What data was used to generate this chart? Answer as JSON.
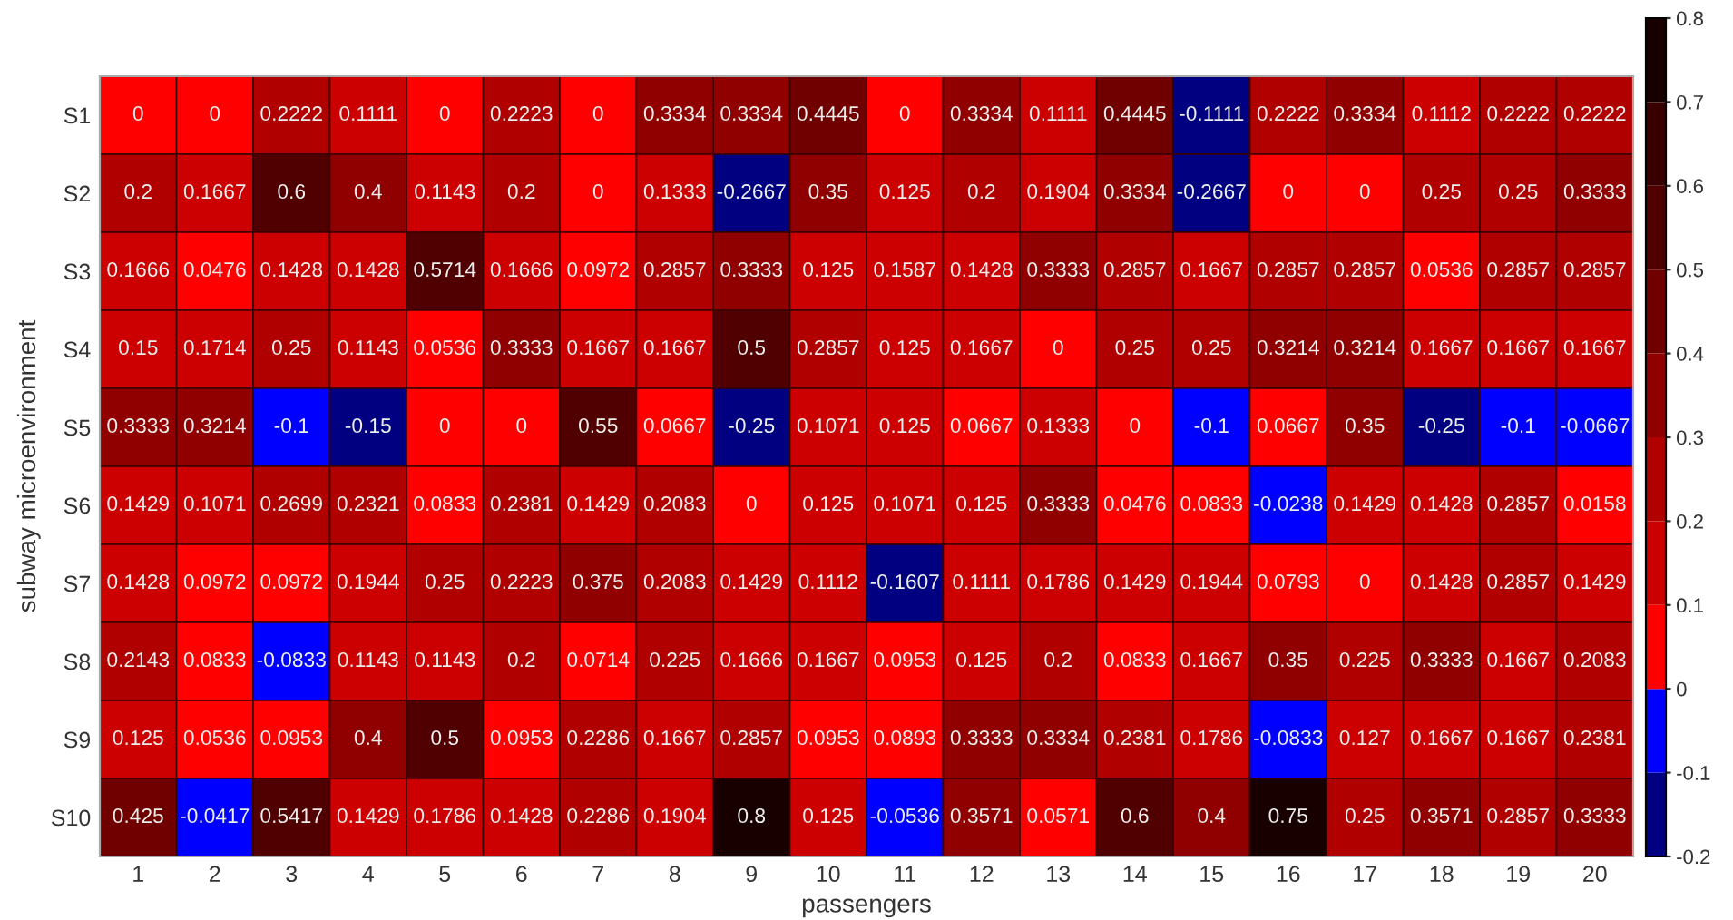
{
  "chart_data": {
    "type": "heatmap",
    "xlabel": "passengers",
    "ylabel": "subway microenvironment",
    "categories": [
      "1",
      "2",
      "3",
      "4",
      "5",
      "6",
      "7",
      "8",
      "9",
      "10",
      "11",
      "12",
      "13",
      "14",
      "15",
      "16",
      "17",
      "18",
      "19",
      "20"
    ],
    "y_categories": [
      "S1",
      "S2",
      "S3",
      "S4",
      "S5",
      "S6",
      "S7",
      "S8",
      "S9",
      "S10"
    ],
    "cells": [
      [
        0,
        0,
        0.2222,
        0.1111,
        0,
        0.2223,
        0,
        0.3334,
        0.3334,
        0.4445,
        0,
        0.3334,
        0.1111,
        0.4445,
        -0.1111,
        0.2222,
        0.3334,
        0.1112,
        0.2222,
        0.2222
      ],
      [
        0.2,
        0.1667,
        0.6,
        0.4,
        0.1143,
        0.2,
        0,
        0.1333,
        -0.2667,
        0.35,
        0.125,
        0.2,
        0.1904,
        0.3334,
        -0.2667,
        0,
        0,
        0.25,
        0.25,
        0.3333
      ],
      [
        0.1666,
        0.0476,
        0.1428,
        0.1428,
        0.5714,
        0.1666,
        0.0972,
        0.2857,
        0.3333,
        0.125,
        0.1587,
        0.1428,
        0.3333,
        0.2857,
        0.1667,
        0.2857,
        0.2857,
        0.0536,
        0.2857,
        0.2857
      ],
      [
        0.15,
        0.1714,
        0.25,
        0.1143,
        0.0536,
        0.3333,
        0.1667,
        0.1667,
        0.5,
        0.2857,
        0.125,
        0.1667,
        0,
        0.25,
        0.25,
        0.3214,
        0.3214,
        0.1667,
        0.1667,
        0.1667
      ],
      [
        0.3333,
        0.3214,
        -0.1,
        -0.15,
        0,
        0,
        0.55,
        0.0667,
        -0.25,
        0.1071,
        0.125,
        0.0667,
        0.1333,
        0,
        -0.1,
        0.0667,
        0.35,
        -0.25,
        -0.1,
        -0.0667
      ],
      [
        0.1429,
        0.1071,
        0.2699,
        0.2321,
        0.0833,
        0.2381,
        0.1429,
        0.2083,
        0,
        0.125,
        0.1071,
        0.125,
        0.3333,
        0.0476,
        0.0833,
        -0.0238,
        0.1429,
        0.1428,
        0.2857,
        0.0158
      ],
      [
        0.1428,
        0.0972,
        0.0972,
        0.1944,
        0.25,
        0.2223,
        0.375,
        0.2083,
        0.1429,
        0.1112,
        -0.1607,
        0.1111,
        0.1786,
        0.1429,
        0.1944,
        0.0793,
        0,
        0.1428,
        0.2857,
        0.1429
      ],
      [
        0.2143,
        0.0833,
        -0.0833,
        0.1143,
        0.1143,
        0.2,
        0.0714,
        0.225,
        0.1666,
        0.1667,
        0.0953,
        0.125,
        0.2,
        0.0833,
        0.1667,
        0.35,
        0.225,
        0.3333,
        0.1667,
        0.2083
      ],
      [
        0.125,
        0.0536,
        0.0953,
        0.4,
        0.5,
        0.0953,
        0.2286,
        0.1667,
        0.2857,
        0.0953,
        0.0893,
        0.3333,
        0.3334,
        0.2381,
        0.1786,
        -0.0833,
        0.127,
        0.1667,
        0.1667,
        0.2381
      ],
      [
        0.425,
        -0.0417,
        0.5417,
        0.1429,
        0.1786,
        0.1428,
        0.2286,
        0.1904,
        0.8,
        0.125,
        -0.0536,
        0.3571,
        0.0571,
        0.6,
        0.4,
        0.75,
        0.25,
        0.3571,
        0.2857,
        0.3333
      ]
    ],
    "clim": [
      -0.2,
      0.8
    ],
    "cticks": [
      -0.2,
      -0.1,
      0,
      0.1,
      0.2,
      0.3,
      0.4,
      0.5,
      0.6,
      0.7,
      0.8
    ],
    "colors": [
      "#000080",
      "#0000ff",
      "#ff0000",
      "#cc0000",
      "#b00000",
      "#900000",
      "#700000",
      "#500000",
      "#380000",
      "#180000"
    ],
    "data_labels": true
  }
}
